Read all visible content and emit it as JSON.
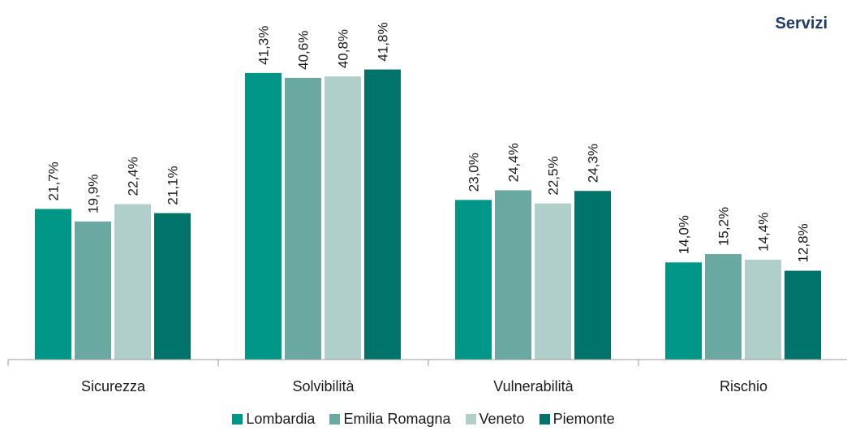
{
  "title": "Servizi",
  "title_color": "#1f3a6b",
  "chart_data": {
    "type": "bar",
    "title": "Servizi",
    "categories": [
      "Sicurezza",
      "Solvibilità",
      "Vulnerabilità",
      "Rischio"
    ],
    "series": [
      {
        "name": "Lombardia",
        "color": "#009688",
        "values": [
          21.7,
          41.3,
          23.0,
          14.0
        ],
        "labels": [
          "21,7%",
          "41,3%",
          "23,0%",
          "14,0%"
        ]
      },
      {
        "name": "Emilia Romagna",
        "color": "#6aa9a2",
        "values": [
          19.9,
          40.6,
          24.4,
          15.2
        ],
        "labels": [
          "19,9%",
          "40,6%",
          "24,4%",
          "15,2%"
        ]
      },
      {
        "name": "Veneto",
        "color": "#b0cfcb",
        "values": [
          22.4,
          40.8,
          22.5,
          14.4
        ],
        "labels": [
          "22,4%",
          "40,8%",
          "22,5%",
          "14,4%"
        ]
      },
      {
        "name": "Piemonte",
        "color": "#00736a",
        "values": [
          21.1,
          41.8,
          24.3,
          12.8
        ],
        "labels": [
          "21,1%",
          "41,8%",
          "24,3%",
          "12,8%"
        ]
      }
    ],
    "ylim": [
      0,
      50
    ],
    "grid": false,
    "legend_position": "bottom"
  }
}
